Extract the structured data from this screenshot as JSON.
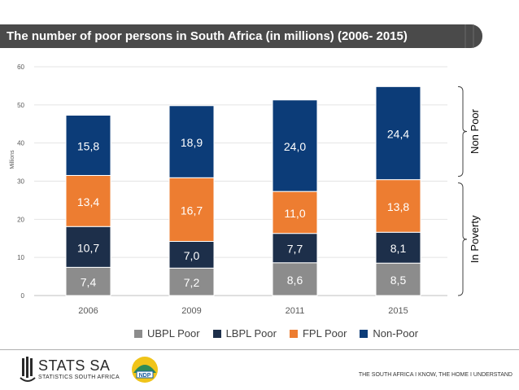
{
  "title": "The number of poor persons in South Africa (in millions) (2006- 2015)",
  "chart_data": {
    "type": "bar",
    "stacked": true,
    "categories": [
      "2006",
      "2009",
      "2011",
      "2015"
    ],
    "series": [
      {
        "name": "UBPL Poor",
        "color": "#8c8c8c",
        "values": [
          7.4,
          7.2,
          8.6,
          8.5
        ],
        "labels": [
          "7,4",
          "7,2",
          "8,6",
          "8,5"
        ]
      },
      {
        "name": "LBPL Poor",
        "color": "#1d2f4a",
        "values": [
          10.7,
          7.0,
          7.7,
          8.1
        ],
        "labels": [
          "10,7",
          "7,0",
          "7,7",
          "8,1"
        ]
      },
      {
        "name": "FPL Poor",
        "color": "#ed7d31",
        "values": [
          13.4,
          16.7,
          11.0,
          13.8
        ],
        "labels": [
          "13,4",
          "16,7",
          "11,0",
          "13,8"
        ]
      },
      {
        "name": "Non-Poor",
        "color": "#0c3c78",
        "values": [
          15.8,
          18.9,
          24.0,
          24.4
        ],
        "labels": [
          "15,8",
          "18,9",
          "24,0",
          "24,4"
        ]
      }
    ],
    "ylabel": "Millions",
    "ylim": [
      0,
      60
    ],
    "yticks": [
      "0",
      "10",
      "20",
      "30",
      "40",
      "50",
      "60"
    ],
    "grid": true,
    "annotations": [
      "Non Poor",
      "In Poverty"
    ]
  },
  "footer": {
    "org_name": "STATS SA",
    "org_subtitle": "STATISTICS SOUTH AFRICA",
    "ndp_label": "NDP",
    "tagline": "THE SOUTH AFRICA I KNOW, THE HOME I UNDERSTAND"
  }
}
